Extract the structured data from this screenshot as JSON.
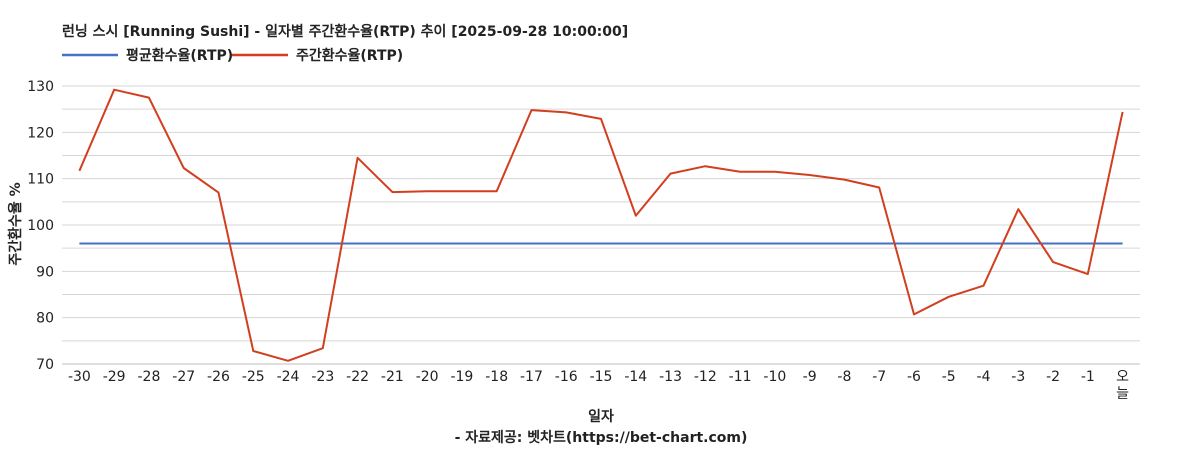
{
  "chart_data": {
    "type": "line",
    "title": "런닝 스시 [Running Sushi] - 일자별 주간환수율(RTP) 추이 [2025-09-28 10:00:00]",
    "xlabel": "일자",
    "ylabel": "주간환수율 %",
    "source": "- 자료제공: 벳차트(https://bet-chart.com)",
    "legend_position": "top-left",
    "grid": true,
    "ylim": [
      70,
      130
    ],
    "yticks": [
      "130",
      "120",
      "110",
      "100",
      "90",
      "80",
      "70"
    ],
    "categories": [
      "-30",
      "-29",
      "-28",
      "-27",
      "-26",
      "-25",
      "-24",
      "-23",
      "-22",
      "-21",
      "-20",
      "-19",
      "-18",
      "-17",
      "-16",
      "-15",
      "-14",
      "-13",
      "-12",
      "-11",
      "-10",
      "-9",
      "-8",
      "-7",
      "-6",
      "-5",
      "-4",
      "-3",
      "-2",
      "-1",
      "오늘"
    ],
    "series": [
      {
        "name": "평균환수율(RTP)",
        "color": "#4472c4",
        "values": [
          96,
          96,
          96,
          96,
          96,
          96,
          96,
          96,
          96,
          96,
          96,
          96,
          96,
          96,
          96,
          96,
          96,
          96,
          96,
          96,
          96,
          96,
          96,
          96,
          96,
          96,
          96,
          96,
          96,
          96,
          96
        ]
      },
      {
        "name": "주간환수율(RTP)",
        "color": "#d13f1f",
        "values": [
          111.7,
          129.2,
          127.5,
          112.3,
          107.0,
          72.8,
          70.7,
          73.4,
          114.5,
          107.1,
          107.3,
          107.3,
          107.3,
          124.8,
          124.3,
          122.9,
          102.0,
          111.1,
          112.7,
          111.5,
          111.5,
          110.8,
          109.8,
          108.1,
          80.7,
          84.5,
          86.9,
          103.4,
          92.0,
          89.4,
          124.4
        ]
      }
    ]
  }
}
